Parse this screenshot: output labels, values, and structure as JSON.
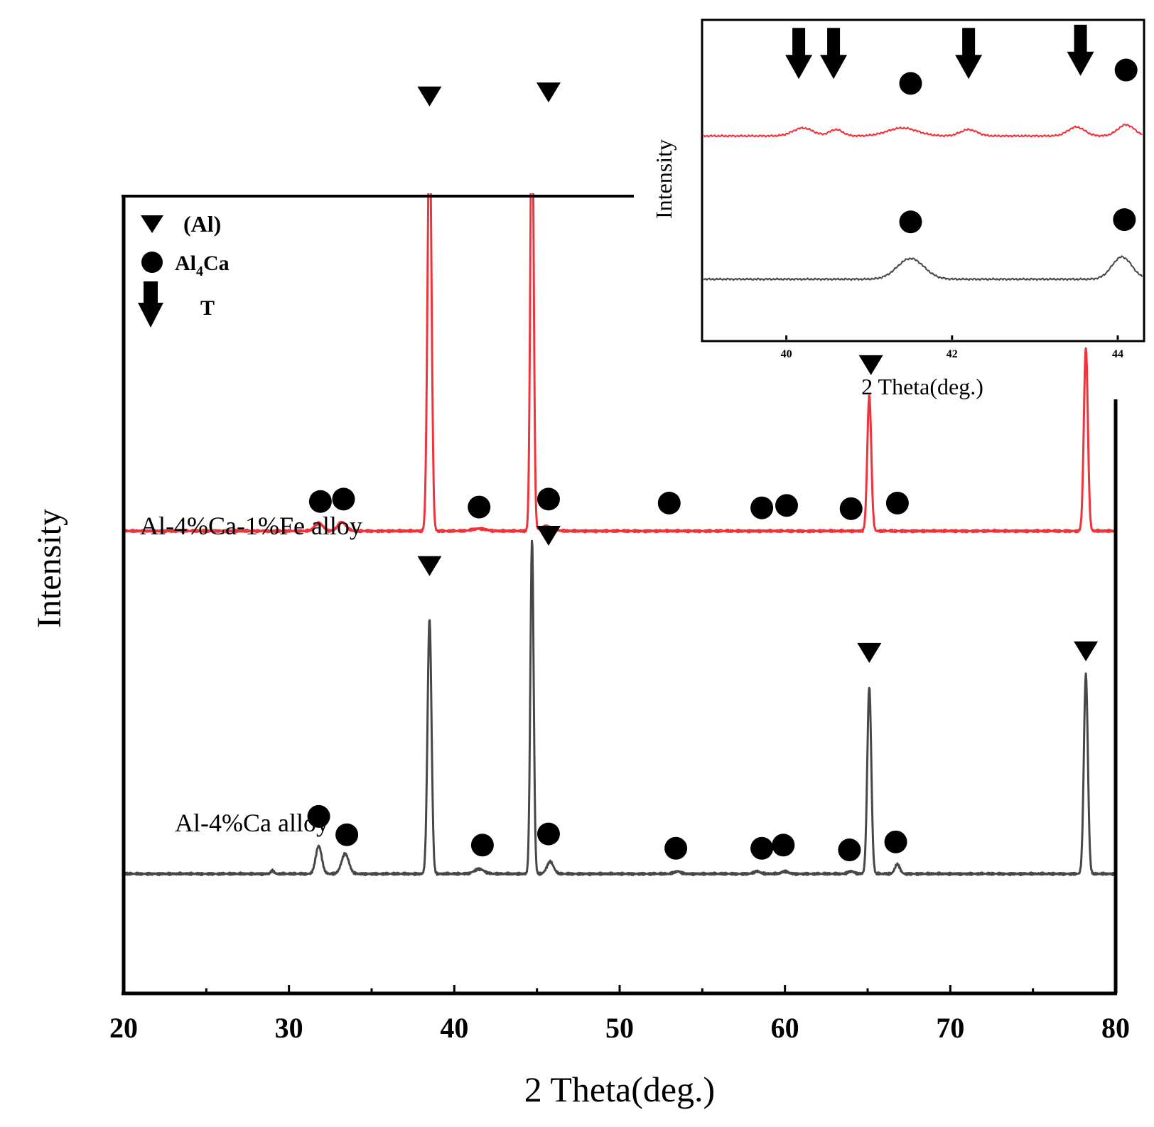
{
  "colors": {
    "fe_series": "#f0333b",
    "ca_series": "#474747",
    "axis": "#000000"
  },
  "chart_data": [
    {
      "type": "line",
      "panel": "main",
      "xlabel": "2 Theta(deg.)",
      "ylabel": "Intensity",
      "xlim": [
        20,
        80
      ],
      "ylim": [
        0,
        100
      ],
      "x_ticks": [
        20,
        30,
        40,
        50,
        60,
        70,
        80
      ],
      "x_tick_labels": [
        "20",
        "30",
        "40",
        "50",
        "60",
        "70",
        "80"
      ],
      "legend": {
        "position": "top-left",
        "entries": [
          {
            "symbol": "triangle-icon",
            "label": "(Al)"
          },
          {
            "symbol": "circle-icon",
            "label": "Al4Ca",
            "label_main": "Al",
            "label_sub": "4",
            "label_tail": "Ca"
          },
          {
            "symbol": "arrow-down-icon",
            "label": "T"
          }
        ]
      },
      "series": [
        {
          "name": "Al-4%Ca-1%Fe alloy",
          "label": "Al-4%Ca-1%Fe alloy",
          "color": "#f0333b",
          "baseline": 58,
          "peaks": [
            {
              "x": 31.8,
              "h": 1.0,
              "w": 0.25
            },
            {
              "x": 33.2,
              "h": 1.1,
              "w": 0.25
            },
            {
              "x": 38.5,
              "h": 52.0,
              "w": 0.12
            },
            {
              "x": 41.5,
              "h": 0.3,
              "w": 0.4
            },
            {
              "x": 44.7,
              "h": 58.0,
              "w": 0.1
            },
            {
              "x": 45.6,
              "h": 0.6,
              "w": 0.35
            },
            {
              "x": 65.1,
              "h": 17.0,
              "w": 0.12
            },
            {
              "x": 78.2,
              "h": 23.0,
              "w": 0.12
            }
          ],
          "markers": [
            {
              "symbol": "circle",
              "x": 31.9,
              "level": 61.7
            },
            {
              "symbol": "circle",
              "x": 33.3,
              "level": 62.0
            },
            {
              "symbol": "triangle",
              "x": 38.5,
              "level": 112.5
            },
            {
              "symbol": "circle",
              "x": 41.5,
              "level": 61.0
            },
            {
              "symbol": "triangle",
              "x": 45.7,
              "level": 113.0
            },
            {
              "symbol": "circle",
              "x": 45.7,
              "level": 62.0
            },
            {
              "symbol": "circle",
              "x": 53.0,
              "level": 61.5
            },
            {
              "symbol": "circle",
              "x": 58.6,
              "level": 60.9
            },
            {
              "symbol": "circle",
              "x": 60.1,
              "level": 61.2
            },
            {
              "symbol": "circle",
              "x": 64.0,
              "level": 60.8
            },
            {
              "symbol": "triangle",
              "x": 65.2,
              "level": 78.8
            },
            {
              "symbol": "circle",
              "x": 66.8,
              "level": 61.5
            },
            {
              "symbol": "triangle",
              "x": 78.2,
              "level": 83.8
            }
          ]
        },
        {
          "name": "Al-4%Ca alloy",
          "label": "Al-4%Ca alloy",
          "color": "#474747",
          "baseline": 15,
          "peaks": [
            {
              "x": 29.0,
              "h": 0.4,
              "w": 0.1
            },
            {
              "x": 31.8,
              "h": 3.5,
              "w": 0.18
            },
            {
              "x": 33.4,
              "h": 2.5,
              "w": 0.22
            },
            {
              "x": 38.5,
              "h": 32.0,
              "w": 0.12
            },
            {
              "x": 41.5,
              "h": 0.6,
              "w": 0.3
            },
            {
              "x": 44.7,
              "h": 42.0,
              "w": 0.1
            },
            {
              "x": 45.8,
              "h": 1.5,
              "w": 0.2
            },
            {
              "x": 53.5,
              "h": 0.3,
              "w": 0.2
            },
            {
              "x": 58.3,
              "h": 0.3,
              "w": 0.2
            },
            {
              "x": 60.0,
              "h": 0.3,
              "w": 0.2
            },
            {
              "x": 64.0,
              "h": 0.3,
              "w": 0.2
            },
            {
              "x": 65.1,
              "h": 23.5,
              "w": 0.12
            },
            {
              "x": 66.8,
              "h": 1.2,
              "w": 0.15
            },
            {
              "x": 78.2,
              "h": 25.0,
              "w": 0.12
            }
          ],
          "markers": [
            {
              "symbol": "circle",
              "x": 31.8,
              "level": 22.2
            },
            {
              "symbol": "circle",
              "x": 33.5,
              "level": 19.9
            },
            {
              "symbol": "triangle",
              "x": 38.5,
              "level": 53.6
            },
            {
              "symbol": "circle",
              "x": 41.7,
              "level": 18.6
            },
            {
              "symbol": "triangle",
              "x": 45.7,
              "level": 57.4
            },
            {
              "symbol": "circle",
              "x": 45.7,
              "level": 20.0
            },
            {
              "symbol": "circle",
              "x": 53.4,
              "level": 18.2
            },
            {
              "symbol": "circle",
              "x": 58.6,
              "level": 18.2
            },
            {
              "symbol": "circle",
              "x": 59.9,
              "level": 18.6
            },
            {
              "symbol": "circle",
              "x": 63.9,
              "level": 18.0
            },
            {
              "symbol": "triangle",
              "x": 65.1,
              "level": 42.7
            },
            {
              "symbol": "circle",
              "x": 66.7,
              "level": 19.0
            },
            {
              "symbol": "triangle",
              "x": 78.2,
              "level": 42.9
            }
          ]
        }
      ]
    },
    {
      "type": "line",
      "panel": "inset",
      "xlabel": "2 Theta(deg.)",
      "ylabel": "Intensity",
      "xlim": [
        39.0,
        44.3
      ],
      "ylim": [
        0,
        100
      ],
      "x_ticks": [
        40,
        42,
        44
      ],
      "x_tick_labels": [
        "40",
        "42",
        "44"
      ],
      "series": [
        {
          "name": "Al-4%Ca-1%Fe alloy",
          "color": "#f0333b",
          "baseline": 64,
          "peaks": [
            {
              "x": 40.2,
              "h": 2.5,
              "w": 0.12
            },
            {
              "x": 40.6,
              "h": 2.0,
              "w": 0.08
            },
            {
              "x": 41.4,
              "h": 2.5,
              "w": 0.18
            },
            {
              "x": 42.2,
              "h": 2.0,
              "w": 0.1
            },
            {
              "x": 43.5,
              "h": 2.8,
              "w": 0.1
            },
            {
              "x": 44.1,
              "h": 3.5,
              "w": 0.1
            }
          ],
          "markers": [
            {
              "symbol": "arrow",
              "x": 40.15,
              "level": 89.0
            },
            {
              "symbol": "arrow",
              "x": 40.57,
              "level": 89.0
            },
            {
              "symbol": "circle",
              "x": 41.5,
              "level": 80.5
            },
            {
              "symbol": "arrow",
              "x": 42.2,
              "level": 89.0
            },
            {
              "symbol": "arrow",
              "x": 43.55,
              "level": 90.0
            },
            {
              "symbol": "circle",
              "x": 44.1,
              "level": 84.7
            }
          ]
        },
        {
          "name": "Al-4%Ca alloy",
          "color": "#474747",
          "baseline": 19,
          "peaks": [
            {
              "x": 41.5,
              "h": 6.5,
              "w": 0.16
            },
            {
              "x": 44.05,
              "h": 7.0,
              "w": 0.12
            }
          ],
          "markers": [
            {
              "symbol": "circle",
              "x": 41.5,
              "level": 37.0
            },
            {
              "symbol": "circle",
              "x": 44.08,
              "level": 37.7
            }
          ]
        }
      ]
    }
  ]
}
